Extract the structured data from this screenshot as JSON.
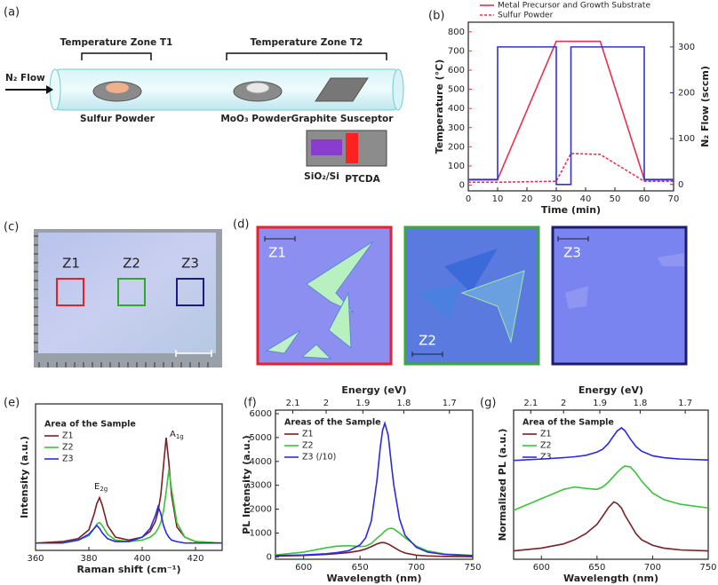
{
  "panel_labels": [
    "(a)",
    "(b)",
    "(c)",
    "(d)",
    "(e)",
    "(f)",
    "(g)"
  ],
  "diagram": {
    "flow": "N₂ Flow",
    "zone1": "Temperature Zone T1",
    "zone2": "Temperature Zone T2",
    "sulfur": "Sulfur Powder",
    "moo3": "MoO₃ Powder",
    "graphite": "Graphite Susceptor",
    "sio2": "SiO₂/Si",
    "ptcda": "PTCDA"
  },
  "images": {
    "c_zones": [
      "Z1",
      "Z2",
      "Z3"
    ],
    "d_zones": [
      "Z1",
      "Z2",
      "Z3"
    ]
  },
  "chart_data": [
    {
      "type": "line",
      "xlabel": "Time (min)",
      "ylabel": "Temperature (°C)",
      "ylabel_color": "#e8314f",
      "y2label": "N₂ Flow (sccm)",
      "y2label_color": "#3333cc",
      "xlim": [
        0,
        70
      ],
      "xticks": [
        0,
        10,
        20,
        30,
        40,
        50,
        60,
        70
      ],
      "ylim": [
        -30,
        850
      ],
      "yticks": [
        0,
        100,
        200,
        300,
        400,
        500,
        600,
        700,
        800
      ],
      "y2lim": [
        -14,
        354
      ],
      "y2ticks": [
        0,
        100,
        200,
        300
      ],
      "legend": "upper left",
      "series": [
        {
          "name": "Metal Precursor and Growth Substrate",
          "color": "#e8314f",
          "linestyle": "solid",
          "x": [
            0,
            10,
            30,
            45,
            60,
            70
          ],
          "values": [
            30,
            30,
            750,
            750,
            30,
            30
          ]
        },
        {
          "name": "Sulfur Powder",
          "color": "#e8314f",
          "linestyle": "dashed",
          "x": [
            0,
            10,
            30,
            35,
            45,
            60,
            70
          ],
          "values": [
            15,
            15,
            20,
            165,
            160,
            20,
            20
          ]
        },
        {
          "color": "#3333cc",
          "linestyle": "solid",
          "axis": "y2",
          "x": [
            0,
            10,
            10,
            30,
            30,
            35,
            35,
            60,
            60,
            70
          ],
          "values": [
            10,
            10,
            300,
            300,
            0,
            0,
            300,
            300,
            10,
            10
          ]
        }
      ]
    },
    {
      "type": "line",
      "xlabel": "Raman shift (cm⁻¹)",
      "ylabel": "Intensity (a.u.)",
      "legend_title": "Area of the Sample",
      "legend": "upper left",
      "xlim": [
        360,
        430
      ],
      "xticks": [
        360,
        380,
        400,
        420
      ],
      "ylim": [
        0,
        100
      ],
      "annotations": [
        {
          "text": "E",
          "sub": "2g"
        },
        {
          "text": "A",
          "sub": "1g"
        }
      ],
      "x": [
        360,
        370,
        376,
        380,
        382,
        383,
        384,
        385,
        387,
        390,
        395,
        400,
        403,
        405,
        406,
        407,
        408,
        409,
        410,
        411,
        413,
        416,
        420,
        430
      ],
      "series": [
        {
          "name": "Z1",
          "color": "#7a1f24",
          "values": [
            5,
            6,
            8,
            14,
            25,
            32,
            36,
            31,
            17,
            9,
            7,
            9,
            13,
            20,
            27,
            38,
            58,
            77,
            60,
            38,
            16,
            9,
            6,
            5
          ]
        },
        {
          "name": "Z2",
          "color": "#3cc23c",
          "values": [
            5,
            5,
            7,
            10,
            15,
            18,
            19,
            17,
            11,
            7,
            6,
            7,
            9,
            12,
            15,
            19,
            27,
            40,
            55,
            42,
            19,
            9,
            6,
            5
          ]
        },
        {
          "name": "Z3",
          "color": "#2a2ae0",
          "values": [
            5,
            5,
            7,
            11,
            15,
            17,
            15,
            12,
            8,
            6,
            6,
            9,
            15,
            24,
            30,
            25,
            17,
            12,
            9,
            7,
            6,
            5,
            5,
            5
          ]
        }
      ]
    },
    {
      "type": "line",
      "xlabel": "Wavelength (nm)",
      "ylabel": "PL Intensity (a.u.)",
      "x2label": "Energy (eV)",
      "legend_title": "Areas of the Sample",
      "legend": "upper left",
      "xlim": [
        575,
        750
      ],
      "xticks": [
        600,
        650,
        700,
        750
      ],
      "x2ticks": [
        2.1,
        2,
        1.9,
        1.8,
        1.7
      ],
      "ylim": [
        -100,
        6150
      ],
      "yticks": [
        0,
        1000,
        2000,
        3000,
        4000,
        5000,
        6000
      ],
      "x": [
        575,
        600,
        620,
        630,
        640,
        650,
        655,
        660,
        665,
        668,
        670,
        672,
        675,
        678,
        680,
        685,
        690,
        700,
        710,
        725,
        750
      ],
      "series": [
        {
          "name": "Z1",
          "color": "#7a1f24",
          "values": [
            30,
            60,
            100,
            140,
            180,
            260,
            330,
            430,
            540,
            590,
            600,
            590,
            540,
            460,
            400,
            260,
            160,
            70,
            40,
            20,
            10
          ]
        },
        {
          "name": "Z2",
          "color": "#3cc23c",
          "values": [
            80,
            200,
            380,
            450,
            470,
            430,
            450,
            560,
            780,
            900,
            980,
            1080,
            1180,
            1200,
            1170,
            1000,
            800,
            450,
            250,
            120,
            60
          ]
        },
        {
          "name": "Z3 (/10)",
          "color": "#2a2ae0",
          "values": [
            50,
            80,
            130,
            180,
            260,
            500,
            800,
            1500,
            3200,
            4600,
            5300,
            5600,
            5100,
            3800,
            3000,
            1600,
            900,
            400,
            200,
            100,
            50
          ]
        }
      ]
    },
    {
      "type": "line",
      "xlabel": "Wavelength (nm)",
      "ylabel": "Normalized PL (a.u.)",
      "x2label": "Energy (eV)",
      "legend_title": "Area of the Sample",
      "legend": "upper left",
      "xlim": [
        575,
        750
      ],
      "xticks": [
        600,
        650,
        700,
        750
      ],
      "x2ticks": [
        2.1,
        2,
        1.9,
        1.8,
        1.7
      ],
      "ylim": [
        0,
        3.2
      ],
      "x": [
        575,
        600,
        620,
        630,
        640,
        650,
        655,
        660,
        665,
        668,
        672,
        675,
        680,
        685,
        690,
        700,
        710,
        725,
        750
      ],
      "series": [
        {
          "name": "Z1",
          "color": "#7a1f24",
          "values": [
            0.18,
            0.24,
            0.33,
            0.42,
            0.55,
            0.75,
            0.92,
            1.1,
            1.23,
            1.2,
            1.1,
            0.95,
            0.75,
            0.55,
            0.42,
            0.3,
            0.24,
            0.2,
            0.18
          ]
        },
        {
          "name": "Z2",
          "color": "#3cc23c",
          "values": [
            1.05,
            1.3,
            1.5,
            1.55,
            1.52,
            1.5,
            1.55,
            1.65,
            1.78,
            1.86,
            1.95,
            2.0,
            1.98,
            1.85,
            1.68,
            1.42,
            1.28,
            1.18,
            1.1
          ]
        },
        {
          "name": "Z3",
          "color": "#2a2ae0",
          "values": [
            2.12,
            2.15,
            2.18,
            2.2,
            2.23,
            2.3,
            2.36,
            2.48,
            2.65,
            2.75,
            2.82,
            2.76,
            2.58,
            2.42,
            2.32,
            2.22,
            2.18,
            2.15,
            2.13
          ]
        }
      ]
    }
  ]
}
